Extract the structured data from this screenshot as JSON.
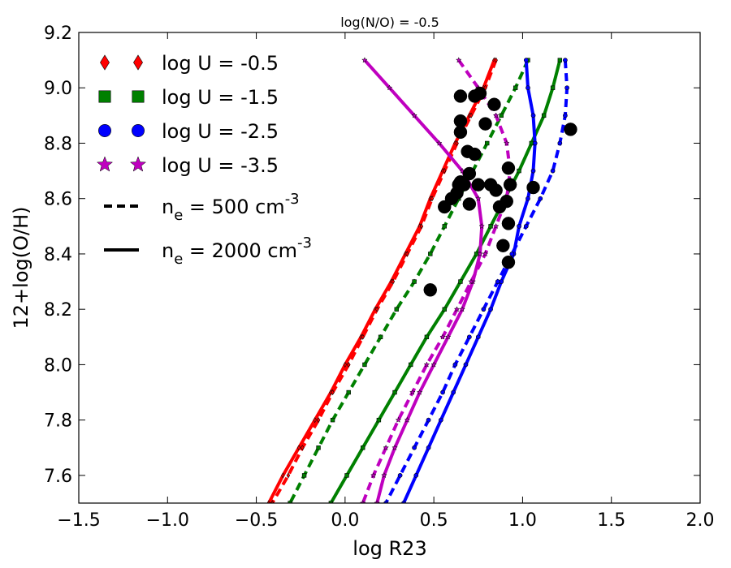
{
  "chart_data": {
    "type": "line",
    "title": "log(N/O) = -0.5",
    "xlabel": "log R23",
    "ylabel": "12+log(O/H)",
    "xlim": [
      -1.5,
      2.0
    ],
    "ylim": [
      7.5,
      9.2
    ],
    "xticks": [
      "−1.5",
      "−1.0",
      "−0.5",
      "0.0",
      "0.5",
      "1.0",
      "1.5",
      "2.0"
    ],
    "yticks": [
      "7.6",
      "7.8",
      "8.0",
      "8.2",
      "8.4",
      "8.6",
      "8.8",
      "9.0",
      "9.2"
    ],
    "legend_position": "top-left",
    "legend": {
      "markers": [
        {
          "label": "log U = -0.5",
          "symbol": "diamond",
          "color": "#ff0000"
        },
        {
          "label": "log U = -1.5",
          "symbol": "square",
          "color": "#008000"
        },
        {
          "label": "log U = -2.5",
          "symbol": "circle",
          "color": "#0000ff"
        },
        {
          "label": "log U = -3.5",
          "symbol": "star",
          "color": "#bf00bf"
        }
      ],
      "lines": [
        {
          "style": "dashed",
          "label_main": "n",
          "label_sub": "e",
          "label_rest": " = 500 cm",
          "label_sup": "-3"
        },
        {
          "style": "solid",
          "label_main": "n",
          "label_sub": "e",
          "label_rest": " = 2000 cm",
          "label_sup": "-3"
        }
      ]
    },
    "series": [
      {
        "color": "#ff0000",
        "marker": "diamond",
        "style": "solid",
        "points": [
          [
            0.84,
            9.1
          ],
          [
            0.78,
            9.0
          ],
          [
            0.7,
            8.9
          ],
          [
            0.62,
            8.8
          ],
          [
            0.55,
            8.7
          ],
          [
            0.48,
            8.6
          ],
          [
            0.42,
            8.5
          ],
          [
            0.34,
            8.4
          ],
          [
            0.26,
            8.3
          ],
          [
            0.17,
            8.2
          ],
          [
            0.09,
            8.1
          ],
          [
            0.0,
            8.0
          ],
          [
            -0.08,
            7.9
          ],
          [
            -0.17,
            7.8
          ],
          [
            -0.26,
            7.7
          ],
          [
            -0.35,
            7.6
          ],
          [
            -0.43,
            7.5
          ]
        ]
      },
      {
        "color": "#ff0000",
        "marker": "diamond",
        "style": "dashed",
        "points": [
          [
            0.85,
            9.1
          ],
          [
            0.79,
            9.0
          ],
          [
            0.71,
            8.9
          ],
          [
            0.63,
            8.8
          ],
          [
            0.56,
            8.7
          ],
          [
            0.49,
            8.6
          ],
          [
            0.43,
            8.5
          ],
          [
            0.35,
            8.4
          ],
          [
            0.27,
            8.3
          ],
          [
            0.18,
            8.2
          ],
          [
            0.1,
            8.1
          ],
          [
            0.02,
            8.0
          ],
          [
            -0.07,
            7.9
          ],
          [
            -0.15,
            7.8
          ],
          [
            -0.24,
            7.7
          ],
          [
            -0.32,
            7.6
          ],
          [
            -0.41,
            7.5
          ]
        ]
      },
      {
        "color": "#008000",
        "marker": "square",
        "style": "solid",
        "points": [
          [
            1.21,
            9.1
          ],
          [
            1.17,
            9.0
          ],
          [
            1.12,
            8.9
          ],
          [
            1.05,
            8.8
          ],
          [
            0.98,
            8.7
          ],
          [
            0.9,
            8.6
          ],
          [
            0.82,
            8.5
          ],
          [
            0.74,
            8.4
          ],
          [
            0.65,
            8.3
          ],
          [
            0.56,
            8.2
          ],
          [
            0.46,
            8.1
          ],
          [
            0.37,
            8.0
          ],
          [
            0.28,
            7.9
          ],
          [
            0.19,
            7.8
          ],
          [
            0.1,
            7.7
          ],
          [
            0.01,
            7.6
          ],
          [
            -0.08,
            7.5
          ]
        ]
      },
      {
        "color": "#008000",
        "marker": "square",
        "style": "dashed",
        "points": [
          [
            1.03,
            9.1
          ],
          [
            0.96,
            9.0
          ],
          [
            0.88,
            8.9
          ],
          [
            0.8,
            8.8
          ],
          [
            0.72,
            8.7
          ],
          [
            0.64,
            8.6
          ],
          [
            0.56,
            8.5
          ],
          [
            0.48,
            8.4
          ],
          [
            0.39,
            8.3
          ],
          [
            0.29,
            8.2
          ],
          [
            0.2,
            8.1
          ],
          [
            0.11,
            8.0
          ],
          [
            0.02,
            7.9
          ],
          [
            -0.07,
            7.8
          ],
          [
            -0.15,
            7.7
          ],
          [
            -0.23,
            7.6
          ],
          [
            -0.31,
            7.5
          ]
        ]
      },
      {
        "color": "#0000ff",
        "marker": "circle",
        "style": "solid",
        "points": [
          [
            1.02,
            9.1
          ],
          [
            1.03,
            9.0
          ],
          [
            1.06,
            8.9
          ],
          [
            1.07,
            8.8
          ],
          [
            1.06,
            8.7
          ],
          [
            1.03,
            8.6
          ],
          [
            0.98,
            8.5
          ],
          [
            0.95,
            8.4
          ],
          [
            0.88,
            8.3
          ],
          [
            0.82,
            8.2
          ],
          [
            0.75,
            8.1
          ],
          [
            0.68,
            8.0
          ],
          [
            0.61,
            7.9
          ],
          [
            0.54,
            7.8
          ],
          [
            0.47,
            7.7
          ],
          [
            0.4,
            7.6
          ],
          [
            0.33,
            7.5
          ]
        ]
      },
      {
        "color": "#0000ff",
        "marker": "circle",
        "style": "dashed",
        "points": [
          [
            1.24,
            9.1
          ],
          [
            1.25,
            9.0
          ],
          [
            1.24,
            8.9
          ],
          [
            1.21,
            8.8
          ],
          [
            1.17,
            8.7
          ],
          [
            1.1,
            8.6
          ],
          [
            1.02,
            8.5
          ],
          [
            0.94,
            8.4
          ],
          [
            0.86,
            8.3
          ],
          [
            0.78,
            8.2
          ],
          [
            0.7,
            8.1
          ],
          [
            0.62,
            8.0
          ],
          [
            0.55,
            7.9
          ],
          [
            0.47,
            7.8
          ],
          [
            0.39,
            7.7
          ],
          [
            0.31,
            7.6
          ],
          [
            0.23,
            7.5
          ]
        ]
      },
      {
        "color": "#bf00bf",
        "marker": "star",
        "style": "solid",
        "points": [
          [
            0.11,
            9.1
          ],
          [
            0.25,
            9.0
          ],
          [
            0.39,
            8.9
          ],
          [
            0.53,
            8.8
          ],
          [
            0.66,
            8.7
          ],
          [
            0.75,
            8.6
          ],
          [
            0.77,
            8.5
          ],
          [
            0.76,
            8.4
          ],
          [
            0.72,
            8.3
          ],
          [
            0.66,
            8.2
          ],
          [
            0.58,
            8.1
          ],
          [
            0.5,
            8.0
          ],
          [
            0.42,
            7.9
          ],
          [
            0.35,
            7.8
          ],
          [
            0.28,
            7.7
          ],
          [
            0.22,
            7.6
          ],
          [
            0.18,
            7.5
          ]
        ]
      },
      {
        "color": "#bf00bf",
        "marker": "star",
        "style": "dashed",
        "points": [
          [
            0.64,
            9.1
          ],
          [
            0.75,
            9.0
          ],
          [
            0.85,
            8.9
          ],
          [
            0.91,
            8.8
          ],
          [
            0.93,
            8.7
          ],
          [
            0.91,
            8.6
          ],
          [
            0.85,
            8.5
          ],
          [
            0.79,
            8.4
          ],
          [
            0.71,
            8.3
          ],
          [
            0.63,
            8.2
          ],
          [
            0.55,
            8.1
          ],
          [
            0.46,
            8.0
          ],
          [
            0.38,
            7.9
          ],
          [
            0.3,
            7.8
          ],
          [
            0.23,
            7.7
          ],
          [
            0.16,
            7.6
          ],
          [
            0.1,
            7.5
          ]
        ]
      }
    ],
    "observed": [
      [
        0.65,
        8.97
      ],
      [
        0.73,
        8.97
      ],
      [
        0.76,
        8.98
      ],
      [
        0.84,
        8.94
      ],
      [
        0.65,
        8.88
      ],
      [
        0.79,
        8.87
      ],
      [
        0.65,
        8.84
      ],
      [
        1.27,
        8.85
      ],
      [
        0.69,
        8.77
      ],
      [
        0.73,
        8.76
      ],
      [
        0.92,
        8.71
      ],
      [
        0.7,
        8.69
      ],
      [
        0.65,
        8.66
      ],
      [
        0.64,
        8.65
      ],
      [
        0.67,
        8.65
      ],
      [
        0.75,
        8.65
      ],
      [
        0.82,
        8.65
      ],
      [
        0.93,
        8.65
      ],
      [
        1.06,
        8.64
      ],
      [
        0.85,
        8.63
      ],
      [
        0.63,
        8.62
      ],
      [
        0.91,
        8.59
      ],
      [
        0.6,
        8.6
      ],
      [
        0.7,
        8.58
      ],
      [
        0.56,
        8.57
      ],
      [
        0.87,
        8.57
      ],
      [
        0.92,
        8.51
      ],
      [
        0.89,
        8.43
      ],
      [
        0.92,
        8.37
      ],
      [
        0.48,
        8.27
      ]
    ]
  }
}
